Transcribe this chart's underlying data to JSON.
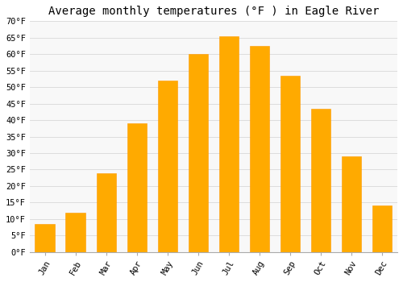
{
  "title": "Average monthly temperatures (°F ) in Eagle River",
  "months": [
    "Jan",
    "Feb",
    "Mar",
    "Apr",
    "May",
    "Jun",
    "Jul",
    "Aug",
    "Sep",
    "Oct",
    "Nov",
    "Dec"
  ],
  "values": [
    8.5,
    12,
    24,
    39,
    52,
    60,
    65.5,
    62.5,
    53.5,
    43.5,
    29,
    14
  ],
  "bar_color": "#FFAA00",
  "bar_edge_color": "#FF9900",
  "ylim": [
    0,
    70
  ],
  "yticks": [
    0,
    5,
    10,
    15,
    20,
    25,
    30,
    35,
    40,
    45,
    50,
    55,
    60,
    65,
    70
  ],
  "ytick_labels": [
    "0°F",
    "5°F",
    "10°F",
    "15°F",
    "20°F",
    "25°F",
    "30°F",
    "35°F",
    "40°F",
    "45°F",
    "50°F",
    "55°F",
    "60°F",
    "65°F",
    "70°F"
  ],
  "background_color": "#ffffff",
  "plot_bg_color": "#f8f8f8",
  "grid_color": "#dddddd",
  "title_fontsize": 10,
  "tick_fontsize": 7.5,
  "font_family": "monospace"
}
